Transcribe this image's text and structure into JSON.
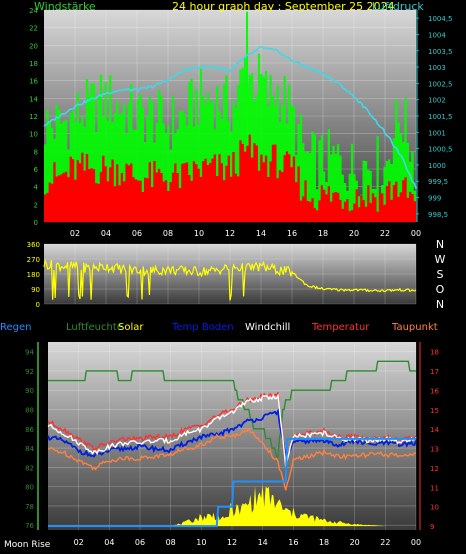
{
  "colors": {
    "wind_axis": "#33cc33",
    "pressure_axis": "#33cccc",
    "title": "#ffff00",
    "gust": "#00ff00",
    "wind": "#ff0000",
    "pressure": "#40d8e8",
    "direction": "#ffff00",
    "rain": "#1e90ff",
    "humidity": "#2e8b2e",
    "solar": "#ffff00",
    "soil_temp": "#0020e0",
    "windchill": "#ffffff",
    "temperature": "#ff3030",
    "dewpoint": "#ff8040",
    "panel_top": "#d8d8d8",
    "panel_bottom": "#3a3a3a"
  },
  "top_panel": {
    "title": "24 hour graph day : September 25 2024",
    "left_label": "Windstärke",
    "right_label": "Luftdruck"
  },
  "bottom_panel": {
    "moon_label": "Moon Rise"
  },
  "chart_data": [
    {
      "type": "line",
      "title": "24 hour graph day : September 25 2024",
      "x_ticks": [
        "02",
        "04",
        "06",
        "08",
        "10",
        "12",
        "14",
        "16",
        "18",
        "20",
        "22",
        "00"
      ],
      "x_range_hours": [
        0,
        24
      ],
      "left_axis": {
        "label": "Windstärke",
        "ticks": [
          0,
          2,
          4,
          6,
          8,
          10,
          12,
          14,
          16,
          18,
          20,
          22,
          24
        ],
        "range": [
          0,
          24
        ]
      },
      "right_axis": {
        "label": "Luftdruck",
        "ticks": [
          "998,5",
          "999",
          "999,5",
          "1000",
          "1000,5",
          "1001",
          "1001,5",
          "1002",
          "1002,5",
          "1003",
          "1003,5",
          "1004",
          "1004,5"
        ],
        "range": [
          998.25,
          1004.75
        ]
      },
      "series": [
        {
          "name": "gust",
          "axis": "left",
          "style": "bars",
          "x": [
            0,
            1,
            2,
            3,
            4,
            5,
            6,
            7,
            8,
            9,
            10,
            11,
            12,
            12.5,
            13,
            13.5,
            14,
            14.5,
            15,
            15.5,
            16,
            17,
            18,
            19,
            20,
            21,
            22,
            22.5,
            23,
            23.5,
            24
          ],
          "y": [
            11,
            11,
            12,
            13,
            14,
            13,
            12,
            12,
            11,
            12,
            14,
            14,
            13,
            14,
            18,
            16,
            16,
            14,
            15,
            14,
            12,
            7,
            7,
            7,
            6,
            7,
            6,
            10,
            12,
            10,
            6
          ]
        },
        {
          "name": "wind",
          "axis": "left",
          "style": "bars",
          "x": [
            0,
            1,
            2,
            3,
            4,
            5,
            6,
            7,
            8,
            9,
            10,
            11,
            12,
            12.5,
            13,
            13.5,
            14,
            14.5,
            15,
            15.5,
            16,
            17,
            18,
            19,
            20,
            21,
            22,
            22.5,
            23,
            23.5,
            24
          ],
          "y": [
            5,
            5,
            6,
            6,
            6,
            6,
            5,
            5,
            5,
            5,
            6,
            6,
            6,
            7,
            8,
            8,
            7,
            7,
            7,
            6,
            6,
            3,
            3,
            3,
            3,
            3,
            3,
            4,
            4,
            3,
            2
          ]
        },
        {
          "name": "pressure",
          "axis": "right",
          "style": "line",
          "x": [
            0,
            1,
            2,
            3,
            4,
            5,
            6,
            7,
            8,
            9,
            10,
            11,
            12,
            13,
            14,
            15,
            16,
            17,
            18,
            19,
            20,
            21,
            22,
            23,
            24
          ],
          "y": [
            1001.2,
            1001.5,
            1001.8,
            1002.0,
            1002.2,
            1002.3,
            1002.3,
            1002.4,
            1002.6,
            1002.9,
            1003.0,
            1003.0,
            1002.9,
            1003.3,
            1003.6,
            1003.5,
            1003.2,
            1003.0,
            1002.8,
            1002.5,
            1002.1,
            1001.6,
            1001.0,
            1000.3,
            999.3
          ]
        }
      ]
    },
    {
      "type": "line",
      "x_range_hours": [
        0,
        24
      ],
      "y_axis": {
        "ticks": [
          0,
          90,
          180,
          270,
          360
        ],
        "range": [
          0,
          360
        ]
      },
      "compass_labels": [
        "N",
        "W",
        "S",
        "O",
        "N"
      ],
      "series": [
        {
          "name": "wind direction",
          "x": [
            0,
            1,
            2,
            3,
            4,
            5,
            6,
            7,
            8,
            9,
            10,
            11,
            12,
            13,
            14,
            15,
            16,
            17,
            18,
            19,
            20,
            21,
            22,
            23,
            24
          ],
          "y": [
            240,
            230,
            225,
            215,
            225,
            210,
            205,
            200,
            205,
            200,
            195,
            200,
            220,
            215,
            225,
            205,
            190,
            110,
            90,
            85,
            85,
            82,
            80,
            85,
            80
          ]
        }
      ]
    },
    {
      "type": "line",
      "x_ticks": [
        "02",
        "04",
        "06",
        "08",
        "10",
        "12",
        "14",
        "16",
        "18",
        "20",
        "22",
        "00"
      ],
      "x_range_hours": [
        0,
        24
      ],
      "legend": [
        "Regen",
        "Luftfeuchte",
        "Solar",
        "Temp Boden",
        "Windchill",
        "Temperatur",
        "Taupunkt"
      ],
      "left_axis": {
        "ticks": [
          76,
          78,
          80,
          82,
          84,
          86,
          88,
          90,
          92,
          94
        ],
        "range": [
          75.5,
          95
        ]
      },
      "right_axis": {
        "ticks": [
          9,
          10,
          11,
          12,
          13,
          14,
          15,
          16,
          17,
          18
        ],
        "range": [
          8.8,
          18.5
        ]
      },
      "series": [
        {
          "name": "Luftfeuchte",
          "axis": "left",
          "x": [
            0,
            2,
            3,
            4,
            5,
            6,
            7,
            8,
            9,
            10,
            11,
            12,
            12.5,
            13,
            13.5,
            14,
            15,
            15.3,
            16,
            17,
            18,
            19,
            20,
            21,
            22,
            23,
            24
          ],
          "y": [
            91,
            91,
            92,
            92,
            91,
            92,
            92,
            91,
            91,
            91,
            91,
            91,
            89,
            88,
            86,
            86,
            83,
            88,
            90,
            90,
            90,
            91,
            92,
            92,
            93,
            93,
            92
          ]
        },
        {
          "name": "Temp Boden",
          "axis": "right",
          "x": [
            0,
            1,
            2,
            3,
            4,
            5,
            6,
            7,
            8,
            9,
            10,
            11,
            12,
            13,
            14,
            15,
            15.5,
            16,
            17,
            18,
            19,
            20,
            21,
            22,
            23,
            24
          ],
          "y": [
            13.6,
            13.4,
            12.9,
            12.6,
            12.9,
            13.0,
            13.1,
            13.0,
            12.9,
            13.3,
            13.6,
            13.7,
            14.0,
            14.4,
            14.6,
            14.9,
            12.5,
            13.3,
            13.4,
            13.4,
            13.2,
            13.4,
            13.2,
            13.3,
            13.2,
            13.3
          ]
        },
        {
          "name": "Temperatur",
          "axis": "right",
          "x": [
            0,
            1,
            2,
            3,
            4,
            5,
            6,
            7,
            8,
            9,
            10,
            11,
            12,
            13,
            14,
            15,
            15.5,
            16,
            17,
            18,
            19,
            20,
            21,
            22,
            23,
            24
          ],
          "y": [
            14.4,
            14.0,
            13.5,
            13.0,
            13.3,
            13.5,
            13.5,
            13.6,
            13.6,
            14.0,
            14.2,
            14.7,
            15.0,
            15.5,
            15.7,
            15.8,
            12.2,
            13.7,
            13.8,
            13.9,
            13.6,
            13.6,
            13.5,
            13.6,
            13.4,
            13.6
          ]
        },
        {
          "name": "Windchill",
          "axis": "right",
          "x": [
            0,
            1,
            2,
            3,
            4,
            5,
            6,
            7,
            8,
            9,
            10,
            11,
            12,
            13,
            14,
            15,
            15.5,
            16,
            17,
            18,
            19,
            20,
            21,
            22,
            23,
            24
          ],
          "y": [
            14.2,
            13.8,
            13.3,
            12.8,
            13.1,
            13.3,
            13.3,
            13.4,
            13.4,
            13.8,
            14.0,
            14.5,
            14.9,
            15.4,
            15.6,
            15.7,
            12.1,
            13.6,
            13.7,
            13.8,
            13.5,
            13.5,
            13.4,
            13.5,
            13.3,
            13.5
          ]
        },
        {
          "name": "Taupunkt",
          "axis": "right",
          "x": [
            0,
            1,
            2,
            3,
            4,
            5,
            6,
            7,
            8,
            9,
            10,
            11,
            12,
            13,
            14,
            15,
            15.5,
            16,
            17,
            18,
            19,
            20,
            21,
            22,
            23,
            24
          ],
          "y": [
            13.0,
            12.8,
            12.4,
            12.0,
            12.4,
            12.5,
            12.5,
            12.6,
            12.7,
            13.0,
            13.2,
            13.6,
            13.6,
            14.0,
            13.3,
            12.3,
            10.8,
            12.4,
            12.6,
            12.8,
            12.6,
            12.6,
            12.7,
            12.7,
            12.6,
            12.8
          ]
        },
        {
          "name": "Regen",
          "axis": "right",
          "style": "step",
          "x": [
            0,
            11,
            11.1,
            12,
            12.1,
            15.5,
            15.6,
            24
          ],
          "y": [
            9.0,
            9.0,
            10.0,
            10.0,
            11.3,
            11.3,
            13.5,
            13.5
          ]
        },
        {
          "name": "Solar",
          "axis": "right",
          "style": "area",
          "x": [
            0,
            8,
            9,
            10,
            11,
            11.5,
            12,
            12.5,
            13,
            13.5,
            14,
            14.5,
            15,
            15.5,
            16,
            17,
            18,
            19,
            20,
            22,
            24
          ],
          "y": [
            9.0,
            9.0,
            9.2,
            9.5,
            9.6,
            9.3,
            10.0,
            9.8,
            10.2,
            10.5,
            10.7,
            10.5,
            10.2,
            9.8,
            9.7,
            9.5,
            9.3,
            9.2,
            9.1,
            9.0,
            9.0
          ]
        }
      ]
    }
  ]
}
